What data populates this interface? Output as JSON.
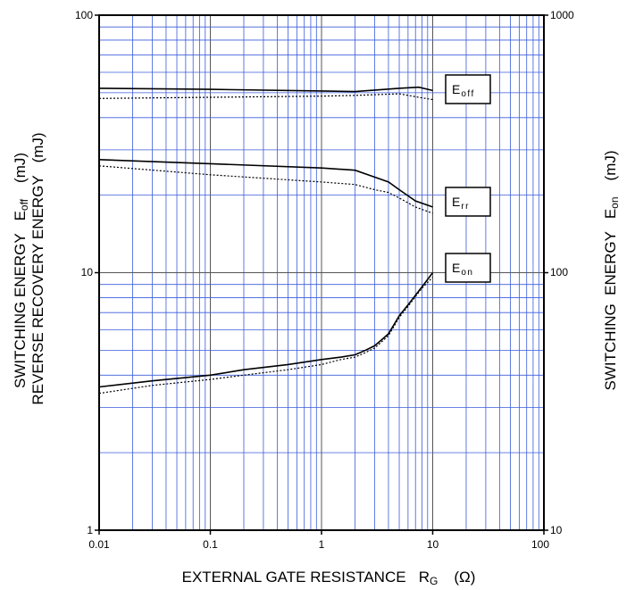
{
  "chart_data": {
    "type": "line",
    "x_scale": "log",
    "y_scale": "log",
    "grid": true,
    "xlim": [
      0.01,
      100
    ],
    "ylim_left": [
      1,
      100
    ],
    "ylim_right": [
      10,
      1000
    ],
    "x_ticks": [
      "0.01",
      "0.1",
      "1",
      "10",
      "100"
    ],
    "y_ticks_left": [
      "1",
      "10",
      "100"
    ],
    "y_ticks_right": [
      "10",
      "100",
      "1000"
    ],
    "xlabel": {
      "text": "EXTERNAL GATE RESISTANCE   R",
      "sub": "G",
      "unit": "(Ω)"
    },
    "ylabel_left_1": {
      "text": "SWITCHING ENERGY   E",
      "sub": "off",
      "unit": "(mJ)"
    },
    "ylabel_left_2": {
      "text": "REVERSE RECOVERY ENERGY   (mJ)"
    },
    "ylabel_right": {
      "text": "SWITCHING  ENERGY   E",
      "sub": "on",
      "unit": "(mJ)"
    },
    "curve_labels": [
      {
        "main": "E",
        "sub": "off"
      },
      {
        "main": "E",
        "sub": "rr"
      },
      {
        "main": "E",
        "sub": "on"
      }
    ],
    "series": [
      {
        "name": "E off",
        "axis": "left",
        "style": "solid",
        "x": [
          0.01,
          0.1,
          1,
          2,
          5,
          7.5,
          10
        ],
        "y": [
          52,
          51.5,
          50.8,
          50.5,
          52,
          52.5,
          51
        ]
      },
      {
        "name": "E off",
        "axis": "left",
        "style": "dotted",
        "x": [
          0.01,
          0.1,
          1,
          2,
          5,
          7.5,
          10
        ],
        "y": [
          47.5,
          48,
          48.5,
          48.8,
          49.5,
          48,
          47
        ]
      },
      {
        "name": "E rr",
        "axis": "left",
        "style": "solid",
        "x": [
          0.01,
          0.1,
          1,
          2,
          3,
          4,
          5,
          7,
          10
        ],
        "y": [
          27.5,
          26.5,
          25.5,
          25,
          23.5,
          22.5,
          21,
          19,
          18
        ]
      },
      {
        "name": "E rr",
        "axis": "left",
        "style": "dotted",
        "x": [
          0.01,
          0.1,
          1,
          2,
          3,
          4,
          5,
          7,
          10
        ],
        "y": [
          26,
          24,
          22.5,
          22,
          21,
          20.5,
          19.5,
          18,
          17
        ]
      },
      {
        "name": "E on",
        "axis": "right",
        "style": "solid",
        "x": [
          0.01,
          0.03,
          0.1,
          0.2,
          0.5,
          1,
          1.5,
          2,
          2.5,
          3,
          3.5,
          4,
          4.5,
          5,
          6,
          8,
          10
        ],
        "y": [
          36,
          38,
          40,
          42,
          44,
          46,
          47,
          48,
          50,
          52,
          55,
          58,
          63,
          68,
          75,
          88,
          100
        ]
      },
      {
        "name": "E on",
        "axis": "right",
        "style": "dotted",
        "x": [
          0.01,
          0.03,
          0.1,
          0.2,
          0.5,
          1,
          1.5,
          2,
          2.5,
          3,
          3.5,
          4,
          4.5,
          5,
          6,
          8,
          10
        ],
        "y": [
          34,
          36.5,
          38.5,
          40,
          42,
          44,
          46,
          47,
          49,
          51,
          54,
          57,
          62,
          67,
          74,
          87,
          96
        ]
      }
    ]
  }
}
